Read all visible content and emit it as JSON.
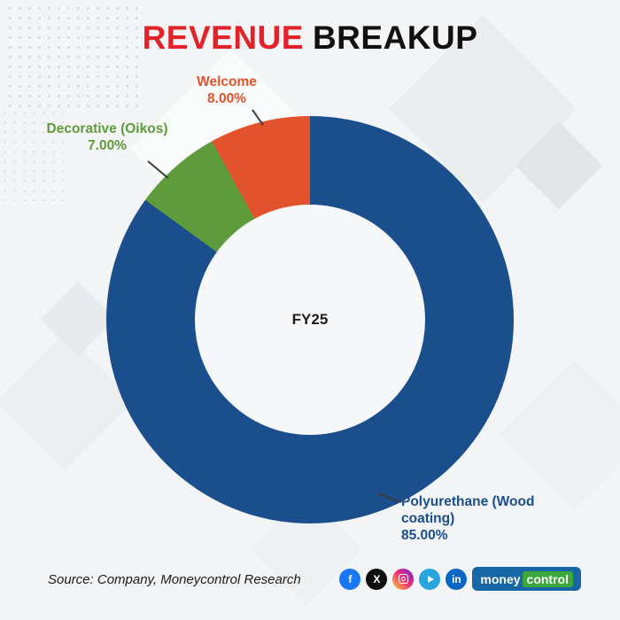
{
  "title": {
    "red": "REVENUE",
    "dark": "BREAKUP"
  },
  "chart_data": {
    "type": "pie",
    "style": "donut",
    "title": "REVENUE BREAKUP",
    "center_label": "FY25",
    "start_angle_deg": 0,
    "direction": "clockwise",
    "segments": [
      {
        "label": "Polyurethane (Wood coating)",
        "value": 85.0,
        "pct_label": "85.00%",
        "color": "#1b4e8c"
      },
      {
        "label": "Decorative (Oikos)",
        "value": 7.0,
        "pct_label": "7.00%",
        "color": "#5e9c3b"
      },
      {
        "label": "Welcome",
        "value": 8.0,
        "pct_label": "8.00%",
        "color": "#e2532c"
      }
    ]
  },
  "footer": {
    "source": "Source: Company, Moneycontrol Research"
  },
  "social": {
    "facebook_glyph": "f",
    "x_glyph": "X",
    "linkedin_glyph": "in",
    "logo": {
      "money": "money",
      "control": "control"
    }
  },
  "colors": {
    "title_red": "#e2232a",
    "title_dark": "#111111",
    "facebook": "#1877f2",
    "x": "#0f0f0f",
    "instagram": "#ee2a7b",
    "telegram": "#2aa4dc",
    "linkedin": "#0a66c2",
    "moneycontrol_blue": "#1766a6",
    "moneycontrol_green": "#3ba83b",
    "background": "#f3f4f5"
  }
}
